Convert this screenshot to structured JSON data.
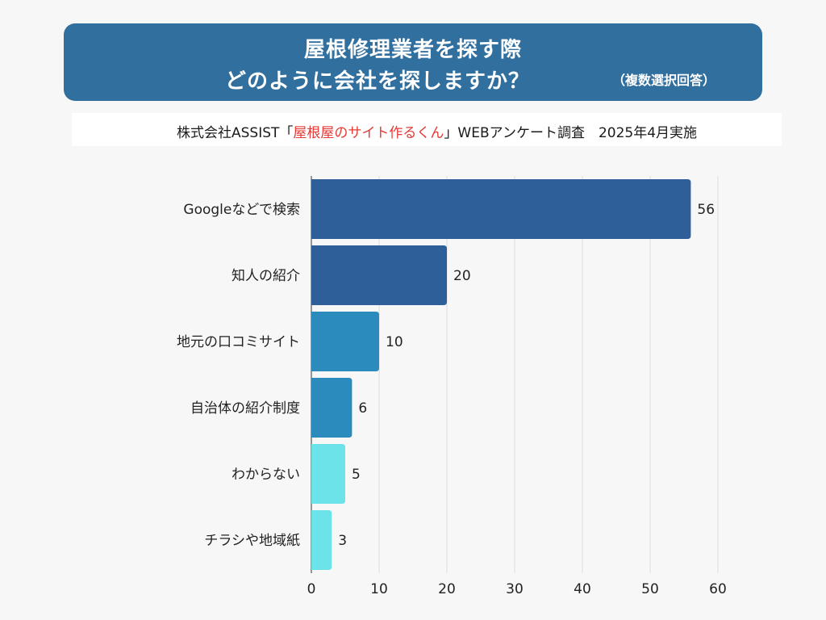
{
  "header": {
    "title_line1": "屋根修理業者を探す際",
    "title_line2": "どのように会社を探しますか？",
    "note": "（複数選択回答）"
  },
  "source": {
    "prefix": "株式会社ASSIST「",
    "highlight": "屋根屋のサイト作るくん",
    "suffix": "」WEBアンケート調査　2025年4月実施"
  },
  "colors": {
    "banner": "#316f9f",
    "highlight": "#e53935"
  },
  "chart_data": {
    "type": "bar",
    "orientation": "horizontal",
    "categories": [
      "Googleなどで検索",
      "知人の紹介",
      "地元の口コミサイト",
      "自治体の紹介制度",
      "わからない",
      "チラシや地域紙"
    ],
    "values": [
      56,
      20,
      10,
      6,
      5,
      3
    ],
    "bar_colors": [
      "#2f5f98",
      "#2f5f98",
      "#2b8bbd",
      "#2b8bbd",
      "#6ce3e8",
      "#6ce3e8"
    ],
    "xlim": [
      0,
      60
    ],
    "xticks": [
      0,
      10,
      20,
      30,
      40,
      50,
      60
    ],
    "grid": true,
    "xlabel": "",
    "ylabel": ""
  }
}
